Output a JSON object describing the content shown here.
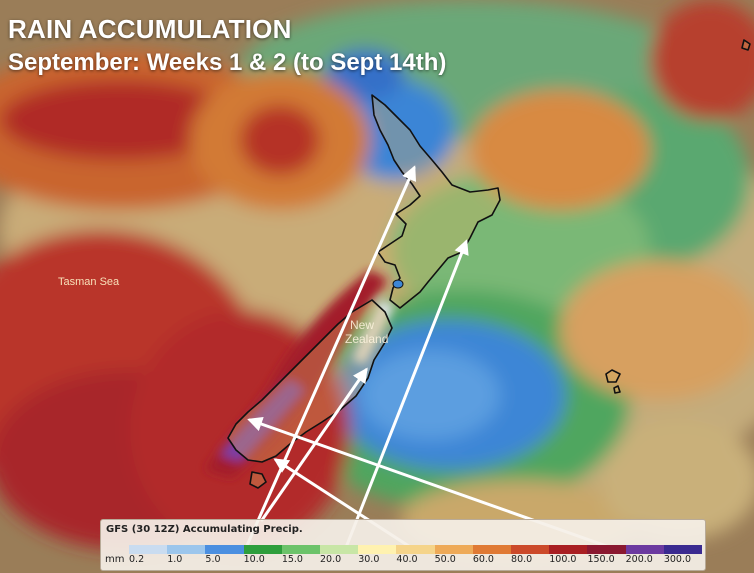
{
  "title": {
    "line1": "RAIN ACCUMULATION",
    "line2": "September: Weeks 1 & 2 (to Sept 14th)"
  },
  "labels": {
    "sea": "Tasman Sea",
    "country_line1": "New",
    "country_line2": "Zealand"
  },
  "legend": {
    "title": "GFS (30 12Z) Accumulating Precip.",
    "unit": "mm",
    "ticks": [
      "0.2",
      "1.0",
      "5.0",
      "10.0",
      "15.0",
      "20.0",
      "30.0",
      "40.0",
      "50.0",
      "60.0",
      "80.0",
      "100.0",
      "150.0",
      "200.0",
      "300.0"
    ],
    "colors": [
      "#c9dcf0",
      "#9cc6ec",
      "#4b8fe0",
      "#2e9e3c",
      "#6cc36a",
      "#c8e6a6",
      "#fff2b0",
      "#f5d48a",
      "#eeaa58",
      "#e07a34",
      "#cc4a2a",
      "#a91f22",
      "#8a1830",
      "#6c3aa0",
      "#3a2a90"
    ]
  },
  "colors": {
    "map_background": "#9a7a52",
    "heavy_rain": "#b8242a",
    "low_rain": "#6cc36a",
    "very_low_rain": "#3a86d8",
    "arrow": "#ffffff",
    "coastline": "#111111"
  }
}
